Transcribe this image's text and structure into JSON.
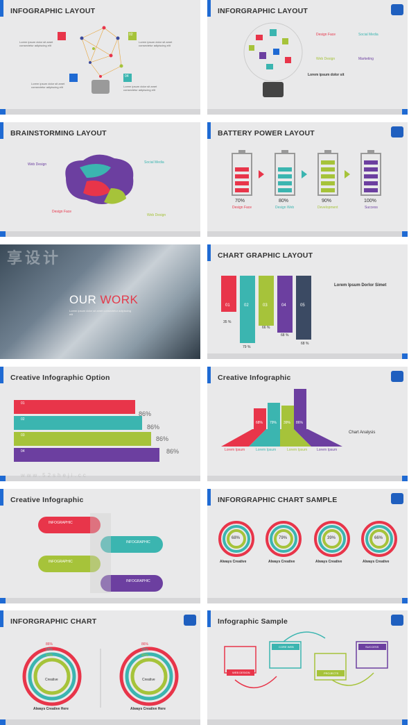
{
  "slides": [
    {
      "title": "INFOGRAPHIC LAYOUT",
      "labels": [
        "01",
        "02",
        "03",
        "04"
      ],
      "text": "Lorem ipsum dolor sit amet consectetur adipiscing elit"
    },
    {
      "title": "INFORGRAPHIC LAYOUT",
      "items": [
        "Design Face",
        "Social Media",
        "Web Design",
        "Marketing"
      ],
      "heading": "Lorem ipsum dolor sit"
    },
    {
      "title": "BRAINSTORMING LAYOUT",
      "items": [
        "Web Design",
        "Social Media",
        "Design Face",
        "Web Design"
      ]
    },
    {
      "title": "BATTERY POWER LAYOUT",
      "batteries": [
        {
          "pct": "70%",
          "label": "Design Face",
          "color": "#e8354a",
          "level": 0.7
        },
        {
          "pct": "80%",
          "label": "Design Web",
          "color": "#3bb5b0",
          "level": 0.8
        },
        {
          "pct": "90%",
          "label": "Development",
          "color": "#a6c33a",
          "level": 0.9
        },
        {
          "pct": "100%",
          "label": "Success",
          "color": "#6c3fa0",
          "level": 1.0
        }
      ]
    },
    {
      "title": "OUR WORK",
      "title_a": "OUR ",
      "title_b": "WORK",
      "text": "Lorem ipsum dolor sit amet consectetur adipiscing elit"
    },
    {
      "title": "CHART GRAPHIC LAYOUT",
      "heading": "Lorem Ipsum Dorlor Simet",
      "bars": [
        {
          "num": "01",
          "pct": "35 %",
          "color": "#e8354a"
        },
        {
          "num": "02",
          "pct": "79 %",
          "color": "#3bb5b0"
        },
        {
          "num": "03",
          "pct": "66 %",
          "color": "#a6c33a"
        },
        {
          "num": "04",
          "pct": "68 %",
          "color": "#6c3fa0"
        },
        {
          "num": "05",
          "pct": "68 %",
          "color": "#3b4a63"
        }
      ]
    },
    {
      "title": "Creative Infographic Option",
      "rows": [
        {
          "num": "01",
          "pct": "86%",
          "color": "#e8354a"
        },
        {
          "num": "02",
          "pct": "86%",
          "color": "#3bb5b0"
        },
        {
          "num": "03",
          "pct": "86%",
          "color": "#a6c33a"
        },
        {
          "num": "04",
          "pct": "86%",
          "color": "#6c3fa0"
        }
      ],
      "click": "Click to add title"
    },
    {
      "title": "Creative Infographic",
      "pcts": [
        "68%",
        "79%",
        "39%",
        "86%"
      ],
      "labels": [
        "Lorem Ipsum",
        "Lorem Ipsum",
        "Lorem Ipsum",
        "Lorem Ipsum"
      ],
      "chart_label": "Chart Analysis"
    },
    {
      "title": "Creative Infographic",
      "steps": [
        "INFOGRAPHIC",
        "INFOGRAPHIC",
        "INFOGRAPHIC",
        "INFOGRAPHIC"
      ]
    },
    {
      "title": "INFORGRAPHIC CHART SAMPLE",
      "rings": [
        {
          "pct": "68%",
          "label": "Always Creative"
        },
        {
          "pct": "79%",
          "label": "Always Creative"
        },
        {
          "pct": "39%",
          "label": "Always Creative"
        },
        {
          "pct": "66%",
          "label": "Always Creative"
        }
      ]
    },
    {
      "title": "INFORGRAPHIC CHART",
      "left": {
        "center": "Creative",
        "caption": "Always Creative Here",
        "pcts": [
          "86%",
          "68%",
          "40%"
        ]
      },
      "right": {
        "center": "Creative",
        "caption": "Always Creative Here",
        "pcts": [
          "86%",
          "68%",
          "40%"
        ]
      }
    },
    {
      "title": "Infographic Sample",
      "boxes": [
        "WEB DESIGN",
        "CORE WEB",
        "PROJECTS",
        "SUCCESS"
      ]
    }
  ],
  "watermark": {
    "brand": "享设计",
    "site": "www.52sheji.cc"
  },
  "colors": {
    "red": "#e8354a",
    "teal": "#3bb5b0",
    "green": "#a6c33a",
    "purple": "#6c3fa0",
    "blue": "#1f6ad3"
  }
}
